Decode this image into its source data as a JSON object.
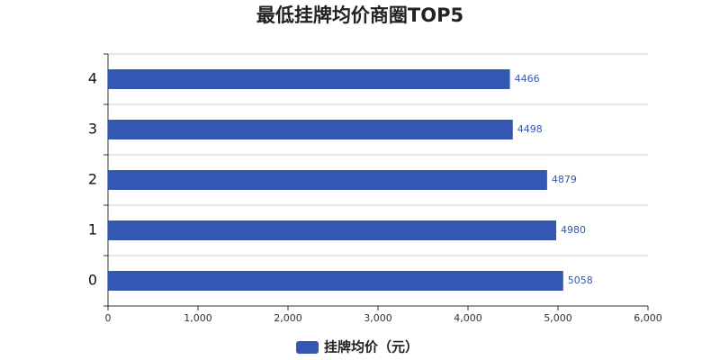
{
  "chart_data": {
    "type": "bar",
    "orientation": "horizontal",
    "title": "最低挂牌均价商圈TOP5",
    "categories": [
      "0",
      "1",
      "2",
      "3",
      "4"
    ],
    "series": [
      {
        "name": "挂牌均价（元）",
        "color": "#3357b3",
        "values": [
          5058,
          4980,
          4879,
          4498,
          4466
        ]
      }
    ],
    "xlim": [
      0,
      6000
    ],
    "xticks": [
      0,
      {
        "value": 1000,
        "label": "1,000"
      },
      {
        "value": 2000,
        "label": "2,000"
      },
      {
        "value": 3000,
        "label": "3,000"
      },
      {
        "value": 4000,
        "label": "4,000"
      },
      {
        "value": 5000,
        "label": "5,000"
      },
      {
        "value": 6000,
        "label": "6,000"
      }
    ]
  }
}
